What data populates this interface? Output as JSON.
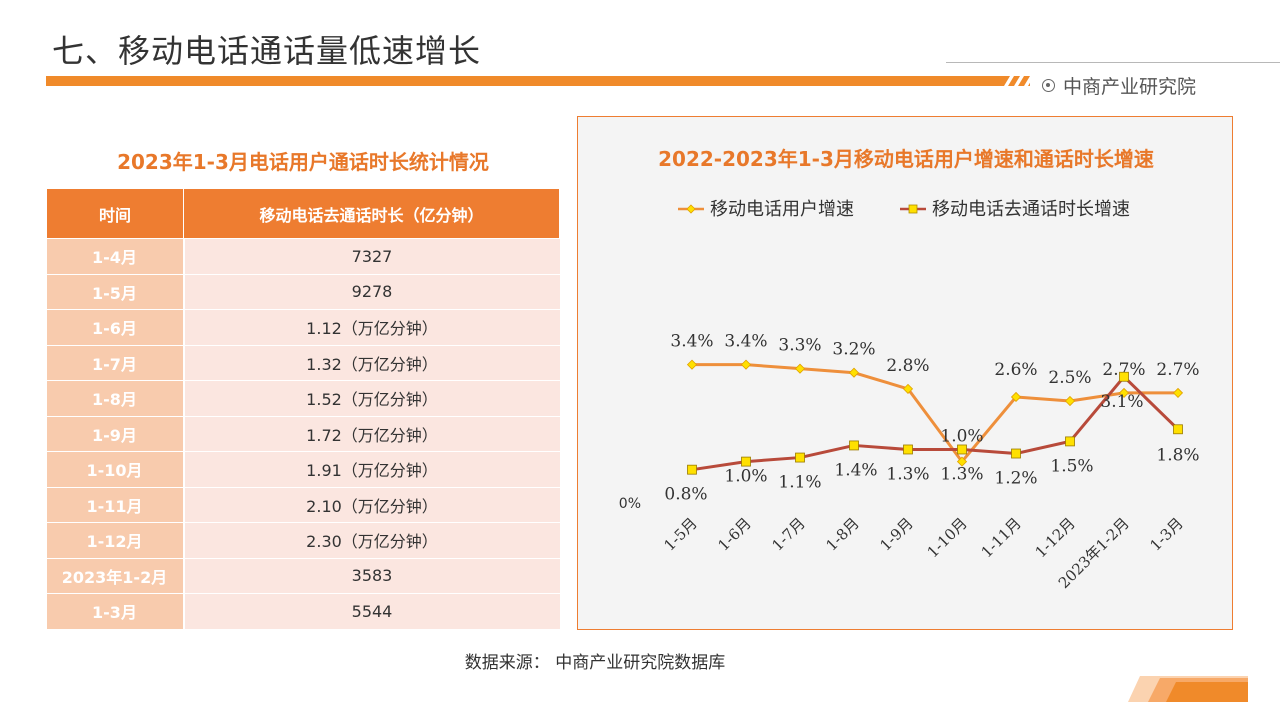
{
  "header": {
    "title": "七、移动电话通话量低速增长",
    "brand": "中商产业研究院"
  },
  "table": {
    "title": "2023年1-3月电话用户通话时长统计情况",
    "col_time": "时间",
    "col_value": "移动电话去通话时长（亿分钟）",
    "rows": [
      {
        "time": "1-4月",
        "value": "7327"
      },
      {
        "time": "1-5月",
        "value": "9278"
      },
      {
        "time": "1-6月",
        "value": "1.12（万亿分钟）"
      },
      {
        "time": "1-7月",
        "value": "1.32（万亿分钟）"
      },
      {
        "time": "1-8月",
        "value": "1.52（万亿分钟）"
      },
      {
        "time": "1-9月",
        "value": "1.72（万亿分钟）"
      },
      {
        "time": "1-10月",
        "value": "1.91（万亿分钟）"
      },
      {
        "time": "1-11月",
        "value": "2.10（万亿分钟）"
      },
      {
        "time": "1-12月",
        "value": "2.30（万亿分钟）"
      },
      {
        "time": "2023年1-2月",
        "value": "3583"
      },
      {
        "time": "1-3月",
        "value": "5544"
      }
    ]
  },
  "chart_data": {
    "type": "line",
    "title": "2022-2023年1-3月移动电话用户增速和通话时长增速",
    "categories": [
      "1-5月",
      "1-6月",
      "1-7月",
      "1-8月",
      "1-9月",
      "1-10月",
      "1-11月",
      "1-12月",
      "2023年1-2月",
      "1-3月"
    ],
    "ylim": [
      0,
      4
    ],
    "y_zero_label": "0%",
    "legend_position": "top",
    "series": [
      {
        "name": "移动电话用户增速",
        "color": "#ee8f3b",
        "marker": "diamond",
        "values": [
          3.4,
          3.4,
          3.3,
          3.2,
          2.8,
          1.0,
          2.6,
          2.5,
          2.7,
          2.7
        ],
        "labels": [
          "3.4%",
          "3.4%",
          "3.3%",
          "3.2%",
          "2.8%",
          "1.0%",
          "2.6%",
          "2.5%",
          "2.7%",
          "2.7%"
        ]
      },
      {
        "name": "移动电话去通话时长增速",
        "color": "#b84a3a",
        "marker": "square",
        "values": [
          0.8,
          1.0,
          1.1,
          1.4,
          1.3,
          1.3,
          1.2,
          1.5,
          3.1,
          1.8
        ],
        "labels": [
          "0.8%",
          "1.0%",
          "1.1%",
          "1.4%",
          "1.3%",
          "1.3%",
          "1.2%",
          "1.5%",
          "3.1%",
          "1.8%"
        ]
      }
    ]
  },
  "footer": {
    "source": "数据来源：  中商产业研究院数据库"
  }
}
